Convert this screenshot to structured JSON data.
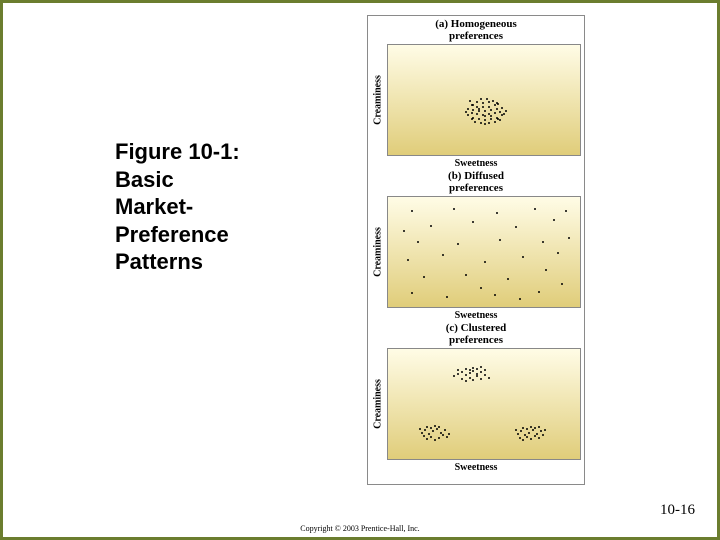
{
  "title": "Figure 10-1: Basic Market-Preference Patterns",
  "title_lines": [
    "Figure 10-1:",
    "Basic",
    "Market-",
    "Preference",
    "Patterns"
  ],
  "page_number": "10-16",
  "copyright": "Copyright © 2003 Prentice-Hall, Inc.",
  "figure": {
    "border_color": "#8a8a8a",
    "panels": [
      {
        "id": "a",
        "title": "(a) Homogeneous\npreferences",
        "ylabel": "Creaminess",
        "xlabel": "Sweetness",
        "plot": {
          "type": "scatter",
          "background_gradient": {
            "top": "#fffce6",
            "bottom": "#e0cd7a"
          },
          "dot_color": "#000000",
          "xlim": [
            0,
            1
          ],
          "ylim": [
            0,
            1
          ],
          "points": [
            [
              0.43,
              0.34
            ],
            [
              0.45,
              0.31
            ],
            [
              0.48,
              0.3
            ],
            [
              0.5,
              0.29
            ],
            [
              0.52,
              0.3
            ],
            [
              0.55,
              0.31
            ],
            [
              0.57,
              0.34
            ],
            [
              0.41,
              0.37
            ],
            [
              0.44,
              0.35
            ],
            [
              0.47,
              0.34
            ],
            [
              0.5,
              0.33
            ],
            [
              0.53,
              0.34
            ],
            [
              0.56,
              0.35
            ],
            [
              0.59,
              0.37
            ],
            [
              0.4,
              0.4
            ],
            [
              0.43,
              0.39
            ],
            [
              0.46,
              0.38
            ],
            [
              0.49,
              0.37
            ],
            [
              0.52,
              0.38
            ],
            [
              0.55,
              0.39
            ],
            [
              0.58,
              0.4
            ],
            [
              0.61,
              0.41
            ],
            [
              0.41,
              0.43
            ],
            [
              0.44,
              0.42
            ],
            [
              0.47,
              0.41
            ],
            [
              0.5,
              0.41
            ],
            [
              0.53,
              0.42
            ],
            [
              0.56,
              0.43
            ],
            [
              0.59,
              0.44
            ],
            [
              0.43,
              0.46
            ],
            [
              0.46,
              0.45
            ],
            [
              0.49,
              0.45
            ],
            [
              0.52,
              0.45
            ],
            [
              0.55,
              0.46
            ],
            [
              0.57,
              0.47
            ],
            [
              0.46,
              0.49
            ],
            [
              0.49,
              0.48
            ],
            [
              0.52,
              0.49
            ],
            [
              0.54,
              0.5
            ],
            [
              0.48,
              0.52
            ],
            [
              0.51,
              0.52
            ],
            [
              0.5,
              0.36
            ],
            [
              0.47,
              0.43
            ],
            [
              0.53,
              0.36
            ],
            [
              0.44,
              0.46
            ],
            [
              0.56,
              0.48
            ],
            [
              0.42,
              0.5
            ],
            [
              0.58,
              0.33
            ],
            [
              0.6,
              0.38
            ]
          ]
        }
      },
      {
        "id": "b",
        "title": "(b) Diffused\npreferences",
        "ylabel": "Creaminess",
        "xlabel": "Sweetness",
        "plot": {
          "type": "scatter",
          "background_gradient": {
            "top": "#fffce6",
            "bottom": "#e0cd7a"
          },
          "dot_color": "#000000",
          "xlim": [
            0,
            1
          ],
          "ylim": [
            0,
            1
          ],
          "points": [
            [
              0.12,
              0.14
            ],
            [
              0.3,
              0.1
            ],
            [
              0.55,
              0.12
            ],
            [
              0.78,
              0.15
            ],
            [
              0.9,
              0.22
            ],
            [
              0.18,
              0.28
            ],
            [
              0.4,
              0.3
            ],
            [
              0.62,
              0.26
            ],
            [
              0.82,
              0.35
            ],
            [
              0.1,
              0.44
            ],
            [
              0.28,
              0.48
            ],
            [
              0.5,
              0.42
            ],
            [
              0.7,
              0.46
            ],
            [
              0.88,
              0.5
            ],
            [
              0.15,
              0.6
            ],
            [
              0.36,
              0.58
            ],
            [
              0.58,
              0.62
            ],
            [
              0.8,
              0.6
            ],
            [
              0.22,
              0.75
            ],
            [
              0.44,
              0.78
            ],
            [
              0.66,
              0.74
            ],
            [
              0.86,
              0.8
            ],
            [
              0.12,
              0.88
            ],
            [
              0.34,
              0.9
            ],
            [
              0.56,
              0.86
            ],
            [
              0.76,
              0.9
            ],
            [
              0.92,
              0.88
            ],
            [
              0.48,
              0.18
            ],
            [
              0.68,
              0.08
            ],
            [
              0.08,
              0.7
            ],
            [
              0.94,
              0.64
            ]
          ]
        }
      },
      {
        "id": "c",
        "title": "(c) Clustered\npreferences",
        "ylabel": "Creaminess",
        "xlabel": "Sweetness",
        "plot": {
          "type": "scatter",
          "background_gradient": {
            "top": "#fffce6",
            "bottom": "#e0cd7a"
          },
          "dot_color": "#000000",
          "xlim": [
            0,
            1
          ],
          "ylim": [
            0,
            1
          ],
          "points": [
            [
              0.18,
              0.22
            ],
            [
              0.2,
              0.19
            ],
            [
              0.22,
              0.21
            ],
            [
              0.24,
              0.18
            ],
            [
              0.26,
              0.2
            ],
            [
              0.28,
              0.23
            ],
            [
              0.17,
              0.25
            ],
            [
              0.19,
              0.27
            ],
            [
              0.21,
              0.24
            ],
            [
              0.23,
              0.26
            ],
            [
              0.25,
              0.28
            ],
            [
              0.27,
              0.25
            ],
            [
              0.29,
              0.27
            ],
            [
              0.2,
              0.3
            ],
            [
              0.22,
              0.29
            ],
            [
              0.24,
              0.31
            ],
            [
              0.26,
              0.3
            ],
            [
              0.16,
              0.28
            ],
            [
              0.3,
              0.21
            ],
            [
              0.31,
              0.24
            ],
            [
              0.68,
              0.2
            ],
            [
              0.7,
              0.18
            ],
            [
              0.72,
              0.21
            ],
            [
              0.74,
              0.19
            ],
            [
              0.76,
              0.22
            ],
            [
              0.78,
              0.2
            ],
            [
              0.67,
              0.24
            ],
            [
              0.69,
              0.26
            ],
            [
              0.71,
              0.23
            ],
            [
              0.73,
              0.25
            ],
            [
              0.75,
              0.27
            ],
            [
              0.77,
              0.24
            ],
            [
              0.79,
              0.26
            ],
            [
              0.7,
              0.29
            ],
            [
              0.72,
              0.28
            ],
            [
              0.74,
              0.3
            ],
            [
              0.76,
              0.29
            ],
            [
              0.66,
              0.27
            ],
            [
              0.8,
              0.23
            ],
            [
              0.81,
              0.27
            ],
            [
              0.78,
              0.3
            ],
            [
              0.38,
              0.74
            ],
            [
              0.4,
              0.72
            ],
            [
              0.42,
              0.75
            ],
            [
              0.44,
              0.73
            ],
            [
              0.46,
              0.76
            ],
            [
              0.48,
              0.74
            ],
            [
              0.36,
              0.78
            ],
            [
              0.38,
              0.8
            ],
            [
              0.4,
              0.77
            ],
            [
              0.42,
              0.79
            ],
            [
              0.44,
              0.81
            ],
            [
              0.46,
              0.78
            ],
            [
              0.48,
              0.8
            ],
            [
              0.5,
              0.77
            ],
            [
              0.4,
              0.83
            ],
            [
              0.42,
              0.82
            ],
            [
              0.44,
              0.84
            ],
            [
              0.46,
              0.83
            ],
            [
              0.34,
              0.76
            ],
            [
              0.52,
              0.75
            ],
            [
              0.5,
              0.82
            ],
            [
              0.36,
              0.82
            ],
            [
              0.48,
              0.85
            ]
          ]
        }
      }
    ]
  },
  "slide": {
    "border_color": "#6b7d2f",
    "background": "#ffffff",
    "title_fontsize": 22,
    "title_weight": "bold",
    "title_color": "#000000"
  }
}
